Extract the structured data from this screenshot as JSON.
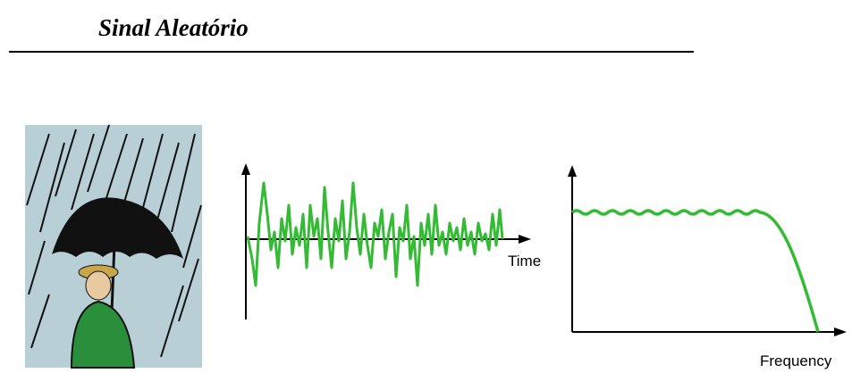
{
  "title": "Sinal Aleatório",
  "time_plot": {
    "x_label": "Time"
  },
  "frequency_plot": {
    "x_label": "Frequency"
  }
}
